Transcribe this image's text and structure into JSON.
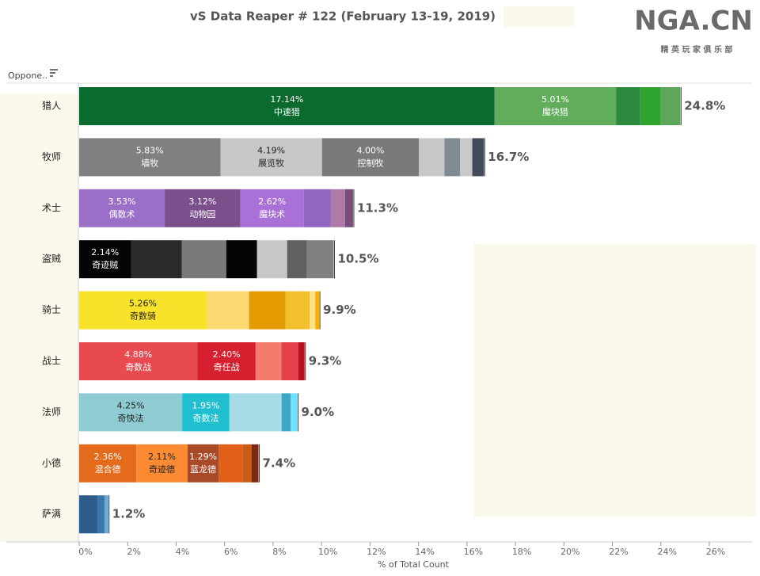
{
  "chart_data": {
    "type": "stacked-bar-horizontal",
    "title": "vS Data Reaper #  122 (February 13-19, 2019)",
    "logo": "NGA.CN",
    "logo_subtitle": "精 英 玩 家 俱 乐 部",
    "header_label": "Oppone..",
    "x_label": "% of Total Count",
    "xlim": [
      0,
      27.5
    ],
    "xticks": [
      {
        "value": 0,
        "label": "0%"
      },
      {
        "value": 2,
        "label": "2%"
      },
      {
        "value": 4,
        "label": "4%"
      },
      {
        "value": 6,
        "label": "6%"
      },
      {
        "value": 8,
        "label": "8%"
      },
      {
        "value": 10,
        "label": "10%"
      },
      {
        "value": 12,
        "label": "12%"
      },
      {
        "value": 14,
        "label": "14%"
      },
      {
        "value": 16,
        "label": "16%"
      },
      {
        "value": 18,
        "label": "18%"
      },
      {
        "value": 20,
        "label": "20%"
      },
      {
        "value": 22,
        "label": "22%"
      },
      {
        "value": 24,
        "label": "24%"
      },
      {
        "value": 26,
        "label": "26%"
      }
    ],
    "categories": [
      "猎人",
      "牧师",
      "术士",
      "盗贼",
      "骑士",
      "战士",
      "法师",
      "小德",
      "萨满"
    ],
    "totals": [
      24.8,
      16.7,
      11.3,
      10.5,
      9.9,
      9.3,
      9.0,
      7.4,
      1.2
    ],
    "total_labels": [
      "24.8%",
      "16.7%",
      "11.3%",
      "10.5%",
      "9.9%",
      "9.3%",
      "9.0%",
      "7.4%",
      "1.2%"
    ],
    "segments": [
      [
        {
          "value": 17.14,
          "value_label": "17.14%",
          "name": "中速猎",
          "color": "#0b6b2f"
        },
        {
          "value": 5.01,
          "value_label": "5.01%",
          "name": "魔块猎",
          "color": "#62ad5c"
        },
        {
          "value": 1.0,
          "color": "#2b8a3e"
        },
        {
          "value": 0.85,
          "color": "#2ea42e"
        },
        {
          "value": 0.8,
          "color": "#5ea65a"
        }
      ],
      [
        {
          "value": 5.83,
          "value_label": "5.83%",
          "name": "墙牧",
          "color": "#808080"
        },
        {
          "value": 4.19,
          "value_label": "4.19%",
          "name": "展览牧",
          "color": "#c8c8c8"
        },
        {
          "value": 4.0,
          "value_label": "4.00%",
          "name": "控制牧",
          "color": "#7a7a7a"
        },
        {
          "value": 1.05,
          "color": "#c7c7c7"
        },
        {
          "value": 0.65,
          "color": "#7f8c94"
        },
        {
          "value": 0.5,
          "color": "#c9c9c9"
        },
        {
          "value": 0.48,
          "color": "#434a5a"
        }
      ],
      [
        {
          "value": 3.53,
          "value_label": "3.53%",
          "name": "偶数术",
          "color": "#9b6fc7"
        },
        {
          "value": 3.12,
          "value_label": "3.12%",
          "name": "动物园",
          "color": "#7b4f8c"
        },
        {
          "value": 2.62,
          "value_label": "2.62%",
          "name": "魔块术",
          "color": "#a970d8"
        },
        {
          "value": 1.1,
          "color": "#9066c0"
        },
        {
          "value": 0.6,
          "color": "#b07aa8"
        },
        {
          "value": 0.33,
          "color": "#7a4e7a"
        }
      ],
      [
        {
          "value": 2.14,
          "value_label": "2.14%",
          "name": "奇迹贼",
          "color": "#050505"
        },
        {
          "value": 2.1,
          "color": "#2b2b2b"
        },
        {
          "value": 1.83,
          "color": "#7a7a7a"
        },
        {
          "value": 1.27,
          "color": "#050505"
        },
        {
          "value": 1.24,
          "color": "#c8c8c8"
        },
        {
          "value": 0.82,
          "color": "#606060"
        },
        {
          "value": 1.1,
          "color": "#808080"
        }
      ],
      [
        {
          "value": 5.26,
          "value_label": "5.26%",
          "name": "奇数骑",
          "color": "#f8e22a"
        },
        {
          "value": 1.75,
          "color": "#fcd870"
        },
        {
          "value": 1.5,
          "color": "#e39b00"
        },
        {
          "value": 1.0,
          "color": "#f2c02e"
        },
        {
          "value": 0.23,
          "color": "#fbe090"
        },
        {
          "value": 0.16,
          "color": "#f4b000"
        }
      ],
      [
        {
          "value": 4.88,
          "value_label": "4.88%",
          "name": "奇数战",
          "color": "#e84a4f"
        },
        {
          "value": 2.4,
          "value_label": "2.40%",
          "name": "奇任战",
          "color": "#d62030"
        },
        {
          "value": 1.06,
          "color": "#f47c6c"
        },
        {
          "value": 0.7,
          "color": "#e34048"
        },
        {
          "value": 0.26,
          "color": "#b8101c"
        }
      ],
      [
        {
          "value": 4.25,
          "value_label": "4.25%",
          "name": "奇快法",
          "color": "#8ecbd2"
        },
        {
          "value": 1.95,
          "value_label": "1.95%",
          "name": "奇数法",
          "color": "#1fbfd0"
        },
        {
          "value": 2.15,
          "color": "#a6dce8"
        },
        {
          "value": 0.38,
          "color": "#3fa6c4"
        },
        {
          "value": 0.27,
          "color": "#6fe0ff"
        }
      ],
      [
        {
          "value": 2.36,
          "value_label": "2.36%",
          "name": "混合德",
          "color": "#e46a1c"
        },
        {
          "value": 2.11,
          "value_label": "2.11%",
          "name": "奇迹德",
          "color": "#fb8a32"
        },
        {
          "value": 1.29,
          "value_label": "1.29%",
          "name": "蓝龙德",
          "color": "#a84a28"
        },
        {
          "value": 1.0,
          "color": "#e0601a"
        },
        {
          "value": 0.35,
          "color": "#c85a1a"
        },
        {
          "value": 0.29,
          "color": "#7a2a10"
        }
      ],
      [
        {
          "value": 0.75,
          "color": "#2d5d8a"
        },
        {
          "value": 0.3,
          "color": "#3b77aa"
        },
        {
          "value": 0.15,
          "color": "#6aa7d4"
        }
      ]
    ]
  }
}
